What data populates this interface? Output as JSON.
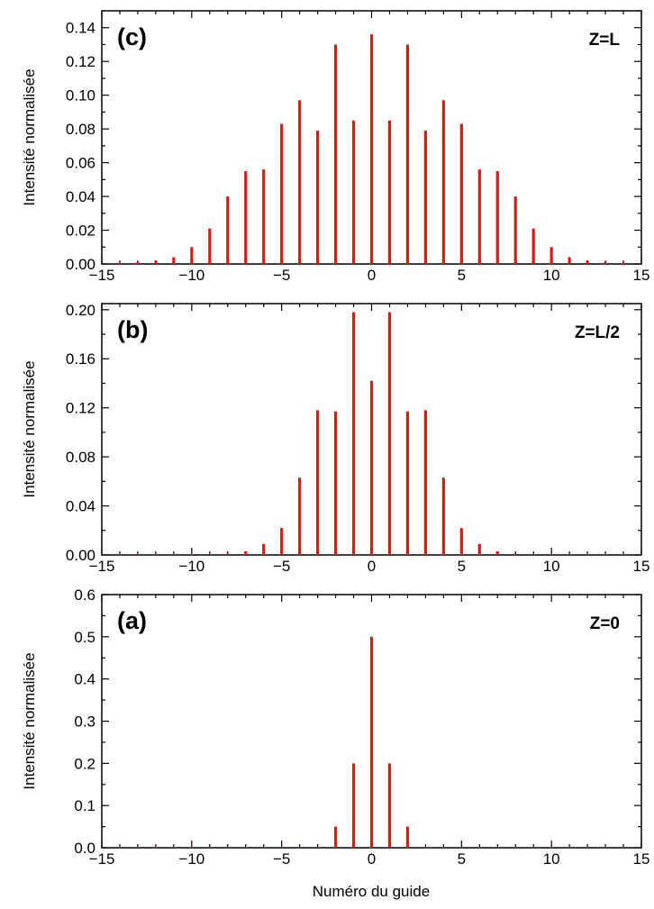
{
  "figure": {
    "xlabel": "Numéro du guide",
    "colors": {
      "bar": "#ee1111",
      "axis": "#000000"
    }
  },
  "chart_data": [
    {
      "type": "bar",
      "panel": "(c)",
      "annotation": "Z=L",
      "ylabel": "Intensité normalisée",
      "xlim": [
        -15,
        15
      ],
      "ylim": [
        0,
        0.15
      ],
      "xticks": [
        -15,
        -10,
        -5,
        0,
        5,
        10,
        15
      ],
      "xtick_labels": [
        "−15",
        "−10",
        "−5",
        "0",
        "5",
        "10",
        "15"
      ],
      "yticks": [
        0,
        0.02,
        0.04,
        0.06,
        0.08,
        0.1,
        0.12,
        0.14
      ],
      "ytick_labels": [
        "0.00",
        "0.02",
        "0.04",
        "0.06",
        "0.08",
        "0.10",
        "0.12",
        "0.14"
      ],
      "x": [
        -14,
        -13,
        -12,
        -11,
        -10,
        -9,
        -8,
        -7,
        -6,
        -5,
        -4,
        -3,
        -2,
        -1,
        0,
        1,
        2,
        3,
        4,
        5,
        6,
        7,
        8,
        9,
        10,
        11,
        12,
        13,
        14
      ],
      "values": [
        0.0005,
        0.001,
        0.002,
        0.004,
        0.01,
        0.021,
        0.04,
        0.055,
        0.056,
        0.083,
        0.097,
        0.079,
        0.13,
        0.085,
        0.136,
        0.085,
        0.13,
        0.079,
        0.097,
        0.083,
        0.056,
        0.055,
        0.04,
        0.021,
        0.01,
        0.004,
        0.002,
        0.001,
        0.0005
      ]
    },
    {
      "type": "bar",
      "panel": "(b)",
      "annotation": "Z=L/2",
      "ylabel": "Intensité normalisée",
      "xlim": [
        -15,
        15
      ],
      "ylim": [
        0,
        0.205
      ],
      "xticks": [
        -15,
        -10,
        -5,
        0,
        5,
        10,
        15
      ],
      "xtick_labels": [
        "−15",
        "−10",
        "−5",
        "0",
        "5",
        "10",
        "15"
      ],
      "yticks": [
        0,
        0.04,
        0.08,
        0.12,
        0.16,
        0.2
      ],
      "ytick_labels": [
        "0.00",
        "0.04",
        "0.08",
        "0.12",
        "0.16",
        "0.20"
      ],
      "x": [
        -14,
        -13,
        -12,
        -11,
        -10,
        -9,
        -8,
        -7,
        -6,
        -5,
        -4,
        -3,
        -2,
        -1,
        0,
        1,
        2,
        3,
        4,
        5,
        6,
        7,
        8,
        9,
        10,
        11,
        12,
        13,
        14
      ],
      "values": [
        0.0005,
        0.0005,
        0.0005,
        0.0005,
        0.0005,
        0.0005,
        0.001,
        0.003,
        0.009,
        0.022,
        0.063,
        0.118,
        0.117,
        0.198,
        0.142,
        0.198,
        0.117,
        0.118,
        0.063,
        0.022,
        0.009,
        0.003,
        0.001,
        0.0005,
        0.0005,
        0.0005,
        0.0005,
        0.0005,
        0.0005
      ]
    },
    {
      "type": "bar",
      "panel": "(a)",
      "annotation": "Z=0",
      "ylabel": "Intensité normalisée",
      "xlim": [
        -15,
        15
      ],
      "ylim": [
        0,
        0.6
      ],
      "xticks": [
        -15,
        -10,
        -5,
        0,
        5,
        10,
        15
      ],
      "xtick_labels": [
        "−15",
        "−10",
        "−5",
        "0",
        "5",
        "10",
        "15"
      ],
      "yticks": [
        0,
        0.1,
        0.2,
        0.3,
        0.4,
        0.5,
        0.6
      ],
      "ytick_labels": [
        "0.0",
        "0.1",
        "0.2",
        "0.3",
        "0.4",
        "0.5",
        "0.6"
      ],
      "x": [
        -14,
        -13,
        -12,
        -11,
        -10,
        -9,
        -8,
        -7,
        -6,
        -5,
        -4,
        -3,
        -2,
        -1,
        0,
        1,
        2,
        3,
        4,
        5,
        6,
        7,
        8,
        9,
        10,
        11,
        12,
        13,
        14
      ],
      "values": [
        0.0015,
        0.0015,
        0.0015,
        0.0015,
        0.0015,
        0.0015,
        0.0015,
        0.0015,
        0.0015,
        0.0015,
        0.0015,
        0.0015,
        0.05,
        0.2,
        0.5,
        0.2,
        0.05,
        0.0015,
        0.0015,
        0.0015,
        0.0015,
        0.0015,
        0.0015,
        0.0015,
        0.0015,
        0.0015,
        0.0015,
        0.0015,
        0.0015
      ]
    }
  ]
}
